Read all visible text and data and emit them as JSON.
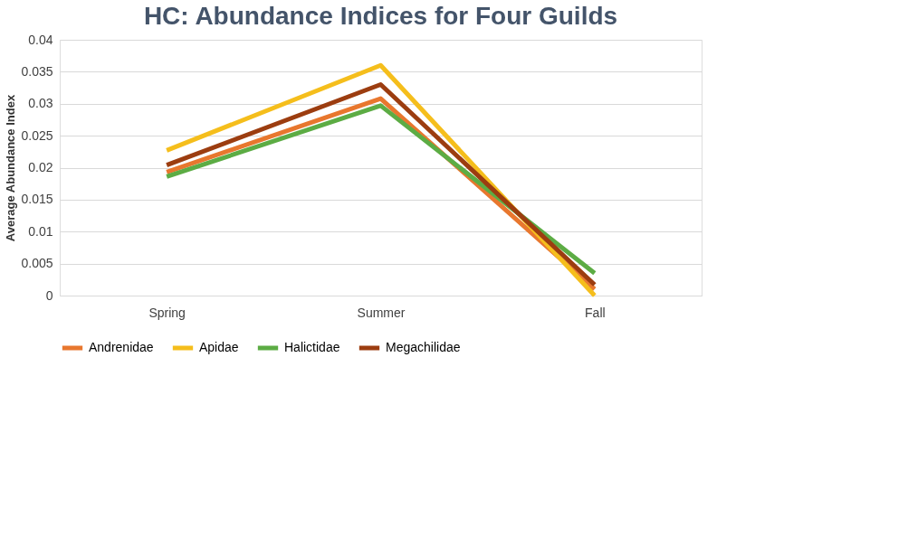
{
  "chart_data": {
    "type": "line",
    "title": "HC: Abundance Indices for Four Guilds",
    "ylabel": "Average  Abundance Index",
    "categories": [
      "Spring",
      "Summer",
      "Fall"
    ],
    "series": [
      {
        "name": "Andrenidae",
        "color": "#e8772e",
        "values": [
          0.0193,
          0.0308,
          0.001
        ]
      },
      {
        "name": "Apidae",
        "color": "#f5be1c",
        "values": [
          0.0227,
          0.036,
          0.0
        ]
      },
      {
        "name": "Halictidae",
        "color": "#5cac44",
        "values": [
          0.0186,
          0.0297,
          0.0035
        ]
      },
      {
        "name": "Megachilidae",
        "color": "#9c3d10",
        "values": [
          0.0204,
          0.033,
          0.0017
        ]
      }
    ],
    "ylim": [
      0,
      0.04
    ],
    "yticks": [
      0,
      0.005,
      0.01,
      0.015,
      0.02,
      0.025,
      0.03,
      0.035,
      0.04
    ],
    "grid": "y",
    "legend": "bottom",
    "marker": "none",
    "line_style": "solid"
  }
}
